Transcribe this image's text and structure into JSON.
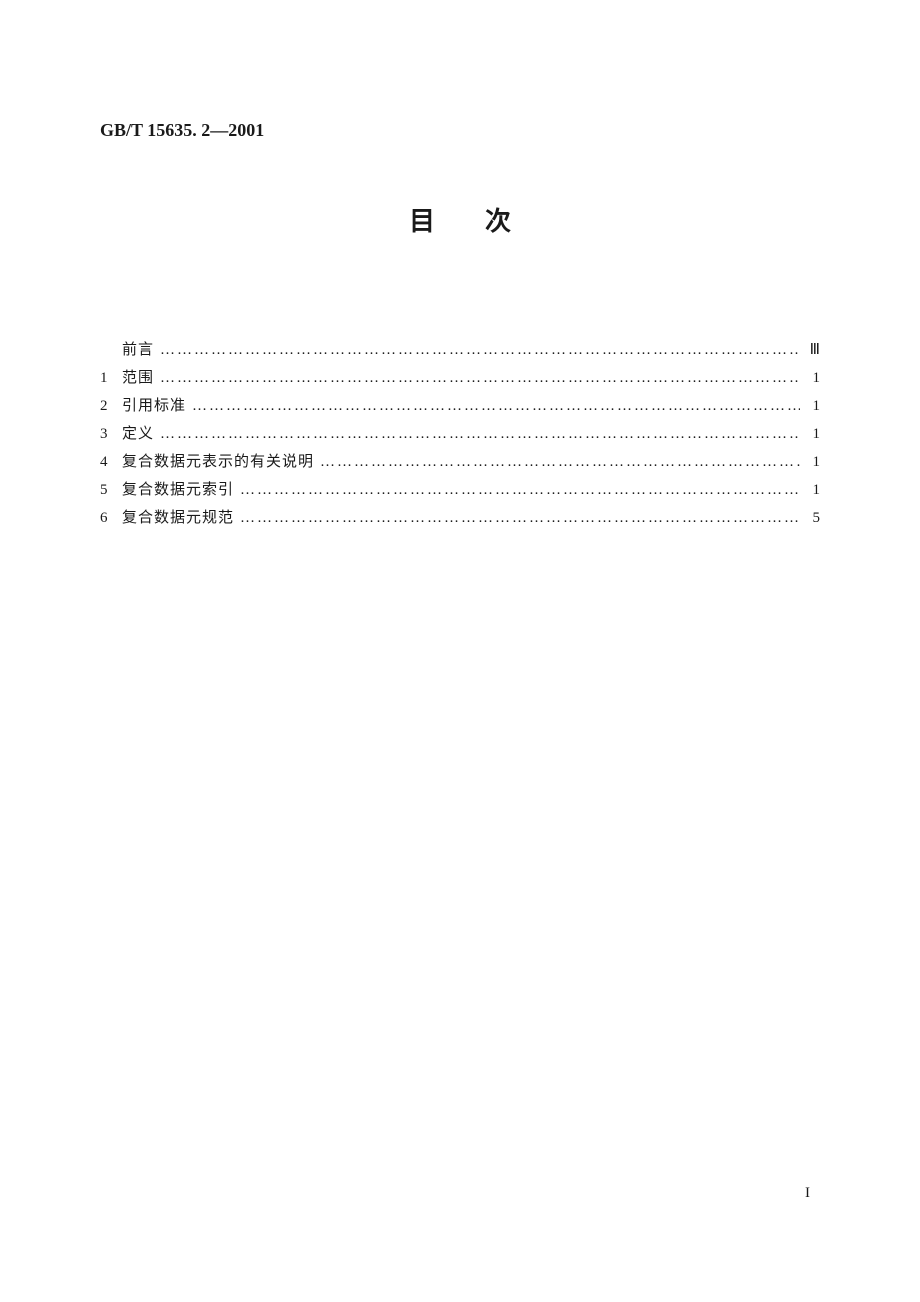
{
  "document": {
    "standard_number": "GB/T 15635. 2—2001",
    "title": "目次",
    "footer_page_number": "I",
    "toc": {
      "entries": [
        {
          "num": "",
          "label": "前言",
          "page": "Ⅲ"
        },
        {
          "num": "1",
          "label": "范围",
          "page": "1"
        },
        {
          "num": "2",
          "label": "引用标准",
          "page": "1"
        },
        {
          "num": "3",
          "label": "定义",
          "page": "1"
        },
        {
          "num": "4",
          "label": "复合数据元表示的有关说明",
          "page": "1"
        },
        {
          "num": "5",
          "label": "复合数据元索引",
          "page": "1"
        },
        {
          "num": "6",
          "label": "复合数据元规范",
          "page": "5"
        }
      ]
    },
    "style": {
      "background_color": "#ffffff",
      "text_color": "#1a1a1a",
      "header_fontsize": 18,
      "title_fontsize": 26,
      "toc_fontsize": 15,
      "title_letter_spacing": 50
    }
  }
}
